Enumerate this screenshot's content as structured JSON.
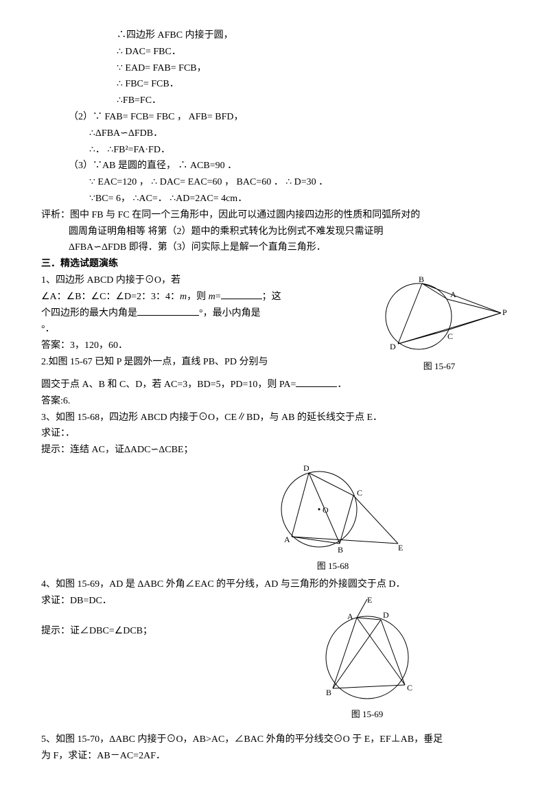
{
  "proof": {
    "l1": "∴四边形 AFBC 内接于圆，",
    "l2": "∴  DAC=  FBC．",
    "l3": "∵  EAD=  FAB=  FCB，",
    "l4": "∴  FBC=  FCB．",
    "l5": "∴FB=FC．",
    "p2": "（2）∵  FAB=  FCB=  FBC ，  AFB=  BFD，",
    "p2l2": "∴ΔFBA∽ΔFDB．",
    "p2l3": "∴．  ∴FB²=FA·FD．",
    "p3": "（3）∵AB 是圆的直径，  ∴  ACB=90 ．",
    "p3l2": "∵  EAC=120 ，  ∴  DAC=  EAC=60 ，  BAC=60 ． ∴  D=30 ．",
    "p3l3": "∵BC= 6， ∴AC=．   ∴AD=2AC= 4cm．",
    "review": "评析：图中 FB 与 FC 在同一个三角形中，因此可以通过圆内接四边形的性质和同弧所对的",
    "reviewl2": "圆周角证明角相等  将第（2）题中的乘积式转化为比例式不难发现只需证明",
    "reviewl3": "ΔFBA∽ΔFDB 即得．第（3）问实际上是解一个直角三角形．"
  },
  "header3": "三．精选试题演练",
  "q1": {
    "l1": "1、四边形 ABCD 内接于⊙O，若",
    "l2a": "∠A：∠B：∠C：∠D=2：3：4：",
    "l2b": "m",
    "l2c": "，则 ",
    "l2d": "m",
    "l2e": "=",
    "l2f": "；这",
    "l3a": "个四边形的最大内角是",
    "l3b": "°，最小内角是",
    "l4": "°．",
    "ans": "答案：3，120，60．"
  },
  "fig67": {
    "caption": "图 15-67",
    "labels": {
      "A": "A",
      "B": "B",
      "C": "C",
      "D": "D",
      "P": "P"
    }
  },
  "q2": {
    "l1": "2.如图 15-67 已知 P 是圆外一点，直线 PB、PD 分别与",
    "l2a": "圆交于点 A、B 和 C、D，若 AC=3，BD=5，PD=10，则 PA=",
    "l2b": "．",
    "ans": "答案:6."
  },
  "q3": {
    "l1": "3、如图 15-68，四边形 ABCD 内接于⊙O，CE∥BD，与 AB 的延长线交于点 E．",
    "l2": "求证：．",
    "hint": "提示：连结 AC，证ΔADC∽ΔCBE；"
  },
  "fig68": {
    "caption": "图 15-68",
    "labels": {
      "A": "A",
      "B": "B",
      "C": "C",
      "D": "D",
      "E": "E",
      "O": "O"
    }
  },
  "q4": {
    "l1": "4、如图 15-69，AD 是 ΔABC 外角∠EAC 的平分线，AD 与三角形的外接圆交于点 D．",
    "l2": "求证：DB=DC．",
    "hint": "提示：证∠DBC=∠DCB；"
  },
  "fig69": {
    "caption": "图 15-69",
    "labels": {
      "A": "A",
      "B": "B",
      "C": "C",
      "D": "D",
      "E": "E"
    }
  },
  "q5": {
    "l1": "5、如图 15-70，ΔABC 内接于⊙O，AB>AC，∠BAC 外角的平分线交⊙O 于 E，EF⊥AB，垂足",
    "l2": "为 F，求证：AB－AC=2AF．"
  },
  "style": {
    "blank_w1": 60,
    "blank_w2": 90,
    "blank_w3": 60
  }
}
